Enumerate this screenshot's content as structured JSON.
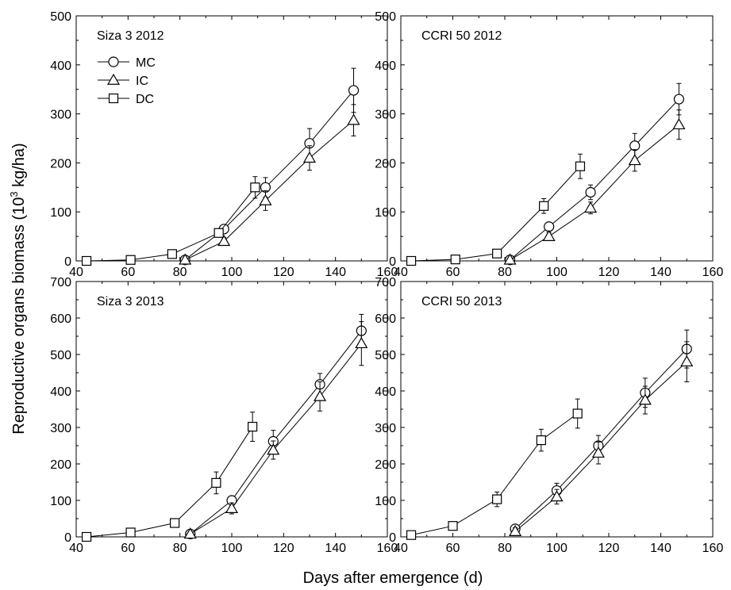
{
  "figure": {
    "ylabel_main": "Reproductive organs biomass (10",
    "ylabel_sup": "3",
    "ylabel_tail": " kg/ha)",
    "xlabel": "Days after emergence (d)"
  },
  "chart_data": [
    {
      "type": "line",
      "title": "Siza 3 2012",
      "xlim": [
        40,
        160
      ],
      "ylim": [
        0,
        500
      ],
      "xticks": [
        40,
        60,
        80,
        100,
        120,
        140,
        160
      ],
      "yticks": [
        0,
        100,
        200,
        300,
        400,
        500
      ],
      "legend": "top-left",
      "series": [
        {
          "name": "MC",
          "marker": "circle",
          "x": [
            82,
            97,
            113,
            130,
            147
          ],
          "y": [
            2,
            65,
            150,
            240,
            348
          ],
          "err": [
            3,
            8,
            20,
            30,
            45
          ]
        },
        {
          "name": "IC",
          "marker": "triangle",
          "x": [
            82,
            97,
            113,
            130,
            147
          ],
          "y": [
            2,
            40,
            123,
            210,
            287
          ],
          "err": [
            3,
            8,
            20,
            25,
            32
          ]
        },
        {
          "name": "DC",
          "marker": "square",
          "x": [
            44,
            61,
            77,
            95,
            109
          ],
          "y": [
            0,
            2,
            14,
            57,
            150
          ],
          "err": [
            0,
            2,
            5,
            6,
            22
          ]
        }
      ]
    },
    {
      "type": "line",
      "title": "CCRI 50 2012",
      "xlim": [
        40,
        160
      ],
      "ylim": [
        0,
        500
      ],
      "xticks": [
        40,
        60,
        80,
        100,
        120,
        140,
        160
      ],
      "yticks": [
        0,
        100,
        200,
        300,
        400,
        500
      ],
      "series": [
        {
          "name": "MC",
          "marker": "circle",
          "x": [
            82,
            97,
            113,
            130,
            147
          ],
          "y": [
            2,
            70,
            140,
            235,
            330
          ],
          "err": [
            3,
            8,
            15,
            25,
            32
          ]
        },
        {
          "name": "IC",
          "marker": "triangle",
          "x": [
            82,
            97,
            113,
            130,
            147
          ],
          "y": [
            2,
            50,
            108,
            205,
            278
          ],
          "err": [
            3,
            8,
            12,
            22,
            30
          ]
        },
        {
          "name": "DC",
          "marker": "square",
          "x": [
            44,
            61,
            77,
            95,
            109
          ],
          "y": [
            0,
            3,
            15,
            112,
            193
          ],
          "err": [
            0,
            2,
            4,
            15,
            25
          ]
        }
      ]
    },
    {
      "type": "line",
      "title": "Siza 3 2013",
      "xlim": [
        40,
        160
      ],
      "ylim": [
        0,
        700
      ],
      "xticks": [
        40,
        60,
        80,
        100,
        120,
        140,
        160
      ],
      "yticks": [
        0,
        100,
        200,
        300,
        400,
        500,
        600,
        700
      ],
      "series": [
        {
          "name": "MC",
          "marker": "circle",
          "x": [
            84,
            100,
            116,
            134,
            150
          ],
          "y": [
            8,
            100,
            262,
            418,
            565
          ],
          "err": [
            4,
            10,
            30,
            30,
            45
          ]
        },
        {
          "name": "IC",
          "marker": "triangle",
          "x": [
            84,
            100,
            116,
            134,
            150
          ],
          "y": [
            8,
            78,
            238,
            385,
            530
          ],
          "err": [
            4,
            15,
            25,
            40,
            60
          ]
        },
        {
          "name": "DC",
          "marker": "square",
          "x": [
            44,
            61,
            78,
            94,
            108
          ],
          "y": [
            0,
            12,
            38,
            148,
            302
          ],
          "err": [
            0,
            3,
            4,
            30,
            40
          ]
        }
      ]
    },
    {
      "type": "line",
      "title": "CCRI 50 2013",
      "xlim": [
        40,
        160
      ],
      "ylim": [
        0,
        700
      ],
      "xticks": [
        40,
        60,
        80,
        100,
        120,
        140,
        160
      ],
      "yticks": [
        0,
        100,
        200,
        300,
        400,
        500,
        600,
        700
      ],
      "series": [
        {
          "name": "MC",
          "marker": "circle",
          "x": [
            84,
            100,
            116,
            134,
            150
          ],
          "y": [
            22,
            127,
            250,
            395,
            515
          ],
          "err": [
            10,
            20,
            28,
            40,
            52
          ]
        },
        {
          "name": "IC",
          "marker": "triangle",
          "x": [
            84,
            100,
            116,
            134,
            150
          ],
          "y": [
            15,
            110,
            230,
            375,
            480
          ],
          "err": [
            10,
            20,
            30,
            38,
            55
          ]
        },
        {
          "name": "DC",
          "marker": "square",
          "x": [
            44,
            60,
            77,
            94,
            108
          ],
          "y": [
            5,
            30,
            103,
            265,
            338
          ],
          "err": [
            0,
            4,
            20,
            30,
            40
          ]
        }
      ]
    }
  ]
}
